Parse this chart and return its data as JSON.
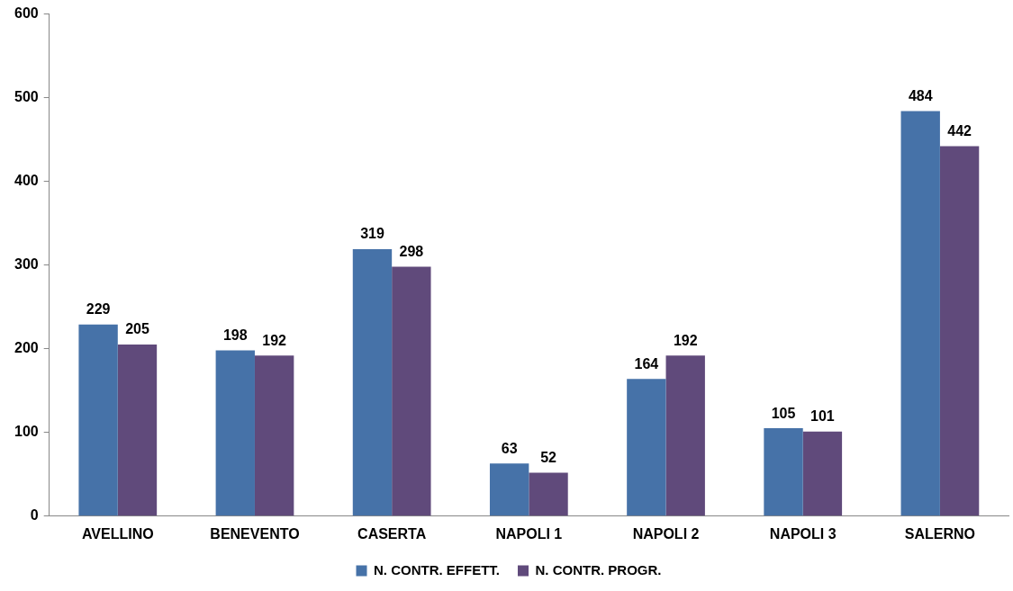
{
  "chart_data": {
    "type": "bar",
    "categories": [
      "AVELLINO",
      "BENEVENTO",
      "CASERTA",
      "NAPOLI 1",
      "NAPOLI 2",
      "NAPOLI 3",
      "SALERNO"
    ],
    "series": [
      {
        "name": "N. CONTR. EFFETT.",
        "color": "#4672a8",
        "values": [
          229,
          198,
          319,
          63,
          164,
          105,
          484
        ]
      },
      {
        "name": "N. CONTR. PROGR.",
        "color": "#604a7b",
        "values": [
          205,
          192,
          298,
          52,
          192,
          101,
          442
        ]
      }
    ],
    "ylim": [
      0,
      600
    ],
    "yticks": [
      0,
      100,
      200,
      300,
      400,
      500,
      600
    ],
    "grid": false,
    "legend": "bottom",
    "data_labels": true
  }
}
